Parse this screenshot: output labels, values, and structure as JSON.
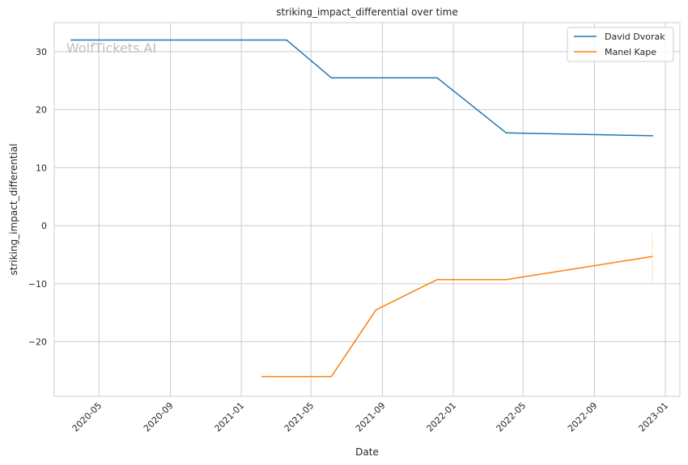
{
  "chart_data": {
    "type": "line",
    "title": "striking_impact_differential over time",
    "xlabel": "Date",
    "ylabel": "striking_impact_differential",
    "watermark": "WolfTickets.AI",
    "x_ticks": [
      "2020-05",
      "2020-09",
      "2021-01",
      "2021-05",
      "2021-09",
      "2022-01",
      "2022-05",
      "2022-09",
      "2023-01"
    ],
    "y_ticks": [
      30,
      20,
      10,
      0,
      -10,
      -20
    ],
    "y_tick_labels": [
      "30",
      "20",
      "10",
      "0",
      "−10",
      "−20"
    ],
    "xlim": [
      "2020-02-14",
      "2023-01-26"
    ],
    "ylim": [
      -29.4,
      35
    ],
    "grid": true,
    "legend_position": "top-right",
    "series": [
      {
        "name": "David Dvorak",
        "color": "#1f77b4",
        "x": [
          "2020-03-14",
          "2021-03-20",
          "2021-06-05",
          "2021-12-04",
          "2022-04-02",
          "2022-12-10"
        ],
        "y": [
          32,
          32,
          25.5,
          25.5,
          16,
          15.5
        ]
      },
      {
        "name": "Manel Kape",
        "color": "#ff7f0e",
        "x": [
          "2021-02-06",
          "2021-06-05",
          "2021-08-21",
          "2021-12-04",
          "2022-04-02",
          "2022-12-10"
        ],
        "y": [
          -26,
          -26,
          -14.5,
          -9.3,
          -9.3,
          -5.3
        ]
      }
    ]
  }
}
